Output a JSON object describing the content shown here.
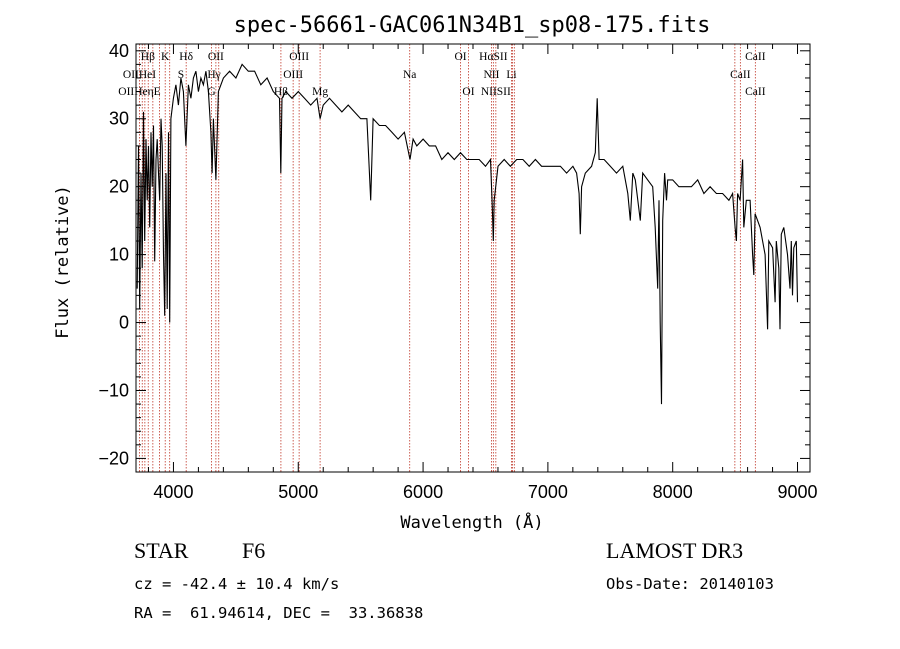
{
  "chart_data": {
    "type": "line",
    "title": "spec-56661-GAC061N34B1_sp08-175.fits",
    "xlabel": "Wavelength (Å)",
    "ylabel": "Flux (relative)",
    "xlim": [
      3700,
      9100
    ],
    "ylim": [
      -22,
      41
    ],
    "xticks": [
      4000,
      5000,
      6000,
      7000,
      8000,
      9000
    ],
    "yticks": [
      -20,
      -10,
      0,
      10,
      20,
      30,
      40
    ],
    "grid": false,
    "series": [
      {
        "name": "flux",
        "points": [
          [
            3710,
            5
          ],
          [
            3720,
            26
          ],
          [
            3730,
            2
          ],
          [
            3740,
            22
          ],
          [
            3750,
            8
          ],
          [
            3760,
            31
          ],
          [
            3770,
            12
          ],
          [
            3780,
            27
          ],
          [
            3790,
            18
          ],
          [
            3800,
            26
          ],
          [
            3810,
            14
          ],
          [
            3820,
            28
          ],
          [
            3830,
            20
          ],
          [
            3840,
            29
          ],
          [
            3850,
            9
          ],
          [
            3860,
            24
          ],
          [
            3870,
            27
          ],
          [
            3880,
            22
          ],
          [
            3890,
            18
          ],
          [
            3900,
            30
          ],
          [
            3910,
            26
          ],
          [
            3920,
            10
          ],
          [
            3930,
            1
          ],
          [
            3940,
            22
          ],
          [
            3950,
            2
          ],
          [
            3960,
            28
          ],
          [
            3970,
            0
          ],
          [
            3980,
            30
          ],
          [
            4000,
            33
          ],
          [
            4020,
            35
          ],
          [
            4040,
            32
          ],
          [
            4060,
            36
          ],
          [
            4080,
            34
          ],
          [
            4100,
            26
          ],
          [
            4120,
            35
          ],
          [
            4140,
            33
          ],
          [
            4160,
            36
          ],
          [
            4180,
            37
          ],
          [
            4200,
            34
          ],
          [
            4220,
            36
          ],
          [
            4240,
            35
          ],
          [
            4260,
            37
          ],
          [
            4280,
            34
          ],
          [
            4300,
            28
          ],
          [
            4310,
            22
          ],
          [
            4320,
            30
          ],
          [
            4340,
            21
          ],
          [
            4360,
            34
          ],
          [
            4380,
            35
          ],
          [
            4400,
            36
          ],
          [
            4450,
            37
          ],
          [
            4500,
            36
          ],
          [
            4550,
            38
          ],
          [
            4600,
            37
          ],
          [
            4650,
            37
          ],
          [
            4700,
            35
          ],
          [
            4750,
            36
          ],
          [
            4800,
            34
          ],
          [
            4850,
            33
          ],
          [
            4860,
            22
          ],
          [
            4870,
            33
          ],
          [
            4900,
            34
          ],
          [
            4950,
            33
          ],
          [
            5000,
            34
          ],
          [
            5050,
            33
          ],
          [
            5100,
            32
          ],
          [
            5150,
            33
          ],
          [
            5175,
            30
          ],
          [
            5200,
            32
          ],
          [
            5250,
            33
          ],
          [
            5300,
            32
          ],
          [
            5350,
            31
          ],
          [
            5400,
            32
          ],
          [
            5450,
            31
          ],
          [
            5500,
            30
          ],
          [
            5550,
            30
          ],
          [
            5580,
            18
          ],
          [
            5600,
            30
          ],
          [
            5650,
            29
          ],
          [
            5700,
            29
          ],
          [
            5750,
            28
          ],
          [
            5800,
            27
          ],
          [
            5850,
            28
          ],
          [
            5895,
            24
          ],
          [
            5920,
            27
          ],
          [
            5950,
            26
          ],
          [
            6000,
            27
          ],
          [
            6050,
            26
          ],
          [
            6100,
            26
          ],
          [
            6150,
            24
          ],
          [
            6200,
            25
          ],
          [
            6250,
            24
          ],
          [
            6300,
            25
          ],
          [
            6350,
            24
          ],
          [
            6400,
            24
          ],
          [
            6450,
            24
          ],
          [
            6500,
            23
          ],
          [
            6540,
            24
          ],
          [
            6555,
            17
          ],
          [
            6563,
            12
          ],
          [
            6570,
            18
          ],
          [
            6600,
            23
          ],
          [
            6650,
            24
          ],
          [
            6700,
            23
          ],
          [
            6750,
            24
          ],
          [
            6800,
            24
          ],
          [
            6850,
            23
          ],
          [
            6900,
            24
          ],
          [
            6950,
            23
          ],
          [
            7000,
            23
          ],
          [
            7050,
            23
          ],
          [
            7100,
            23
          ],
          [
            7150,
            22
          ],
          [
            7200,
            23
          ],
          [
            7230,
            22
          ],
          [
            7250,
            19
          ],
          [
            7260,
            13
          ],
          [
            7270,
            20
          ],
          [
            7300,
            22
          ],
          [
            7350,
            23
          ],
          [
            7380,
            25
          ],
          [
            7395,
            33
          ],
          [
            7410,
            24
          ],
          [
            7450,
            24
          ],
          [
            7500,
            23
          ],
          [
            7550,
            22
          ],
          [
            7600,
            23
          ],
          [
            7640,
            19
          ],
          [
            7660,
            15
          ],
          [
            7680,
            22
          ],
          [
            7700,
            21
          ],
          [
            7740,
            15
          ],
          [
            7760,
            22
          ],
          [
            7800,
            21
          ],
          [
            7840,
            20
          ],
          [
            7860,
            14
          ],
          [
            7880,
            5
          ],
          [
            7890,
            18
          ],
          [
            7900,
            0
          ],
          [
            7910,
            -12
          ],
          [
            7920,
            15
          ],
          [
            7935,
            22
          ],
          [
            7950,
            18
          ],
          [
            7960,
            21
          ],
          [
            8000,
            21
          ],
          [
            8050,
            20
          ],
          [
            8100,
            20
          ],
          [
            8150,
            20
          ],
          [
            8200,
            21
          ],
          [
            8250,
            19
          ],
          [
            8300,
            20
          ],
          [
            8350,
            19
          ],
          [
            8400,
            19
          ],
          [
            8450,
            18
          ],
          [
            8480,
            19
          ],
          [
            8500,
            14
          ],
          [
            8510,
            12
          ],
          [
            8520,
            19
          ],
          [
            8540,
            18
          ],
          [
            8560,
            24
          ],
          [
            8570,
            14
          ],
          [
            8590,
            18
          ],
          [
            8620,
            18
          ],
          [
            8640,
            10
          ],
          [
            8650,
            7
          ],
          [
            8660,
            16
          ],
          [
            8680,
            15
          ],
          [
            8700,
            14
          ],
          [
            8740,
            10
          ],
          [
            8760,
            -1
          ],
          [
            8770,
            12
          ],
          [
            8800,
            11
          ],
          [
            8820,
            3
          ],
          [
            8830,
            12
          ],
          [
            8850,
            8
          ],
          [
            8860,
            -1
          ],
          [
            8870,
            13
          ],
          [
            8890,
            14
          ],
          [
            8920,
            10
          ],
          [
            8940,
            5
          ],
          [
            8950,
            12
          ],
          [
            8960,
            4
          ],
          [
            8970,
            11
          ],
          [
            8990,
            12
          ],
          [
            9000,
            3
          ]
        ]
      }
    ],
    "line_markers": [
      {
        "name": "HB",
        "label": "Hβ",
        "x": 3795,
        "row": 0
      },
      {
        "name": "K",
        "label": "K",
        "x": 3934,
        "row": 0
      },
      {
        "name": "Hd",
        "label": "Hδ",
        "x": 4102,
        "row": 0
      },
      {
        "name": "OII-top",
        "label": "OII",
        "x": 4340,
        "row": 0
      },
      {
        "name": "OIII-top",
        "label": "OIII",
        "x": 5007,
        "row": 0
      },
      {
        "name": "OI-1",
        "label": "OI",
        "x": 6300,
        "row": 0
      },
      {
        "name": "HaSII",
        "label": "HαSII",
        "x": 6563,
        "row": 0
      },
      {
        "name": "CaII-1",
        "label": "CaII",
        "x": 8662,
        "row": 0
      },
      {
        "name": "OIIHe",
        "label": "OIIHeI",
        "x": 3728,
        "row": 1
      },
      {
        "name": "S",
        "label": "S",
        "x": 4060,
        "row": 1
      },
      {
        "name": "Hg",
        "label": "Hγ",
        "x": 4325,
        "row": 1
      },
      {
        "name": "OIII-mid",
        "label": "OIII",
        "x": 4959,
        "row": 1
      },
      {
        "name": "Na",
        "label": "Na",
        "x": 5893,
        "row": 1
      },
      {
        "name": "NII-1",
        "label": "NII",
        "x": 6548,
        "row": 1
      },
      {
        "name": "Li",
        "label": "Li",
        "x": 6708,
        "row": 1
      },
      {
        "name": "CaII-2",
        "label": "CaII",
        "x": 8542,
        "row": 1
      },
      {
        "name": "OIIHe2",
        "label": "OIIHeηE",
        "x": 3728,
        "row": 2
      },
      {
        "name": "G",
        "label": "G",
        "x": 4305,
        "row": 2
      },
      {
        "name": "HB2",
        "label": "Hβ",
        "x": 4861,
        "row": 2
      },
      {
        "name": "Mg",
        "label": "Mg",
        "x": 5175,
        "row": 2
      },
      {
        "name": "OI-2",
        "label": "OI",
        "x": 6364,
        "row": 2
      },
      {
        "name": "NIISII",
        "label": "NIISII",
        "x": 6583,
        "row": 2
      },
      {
        "name": "CaII-3",
        "label": "CaII",
        "x": 8662,
        "row": 2
      }
    ],
    "marker_lines_x": [
      3728,
      3750,
      3771,
      3798,
      3835,
      3889,
      3934,
      3970,
      4102,
      4305,
      4340,
      4363,
      4861,
      4959,
      5007,
      5175,
      5893,
      6300,
      6364,
      6548,
      6563,
      6583,
      6708,
      6716,
      6731,
      8498,
      8542,
      8662
    ]
  },
  "info": {
    "object_class": "STAR",
    "subclass": "F6",
    "survey": "LAMOST DR3",
    "cz": "cz = -42.4 ± 10.4 km/s",
    "obs_date": "Obs-Date: 20140103",
    "coords": "RA =  61.94614, DEC =  33.36838"
  },
  "colors": {
    "axis": "#000000",
    "spectrum": "#000000",
    "marker_line": "#c0392b",
    "background": "#ffffff"
  }
}
